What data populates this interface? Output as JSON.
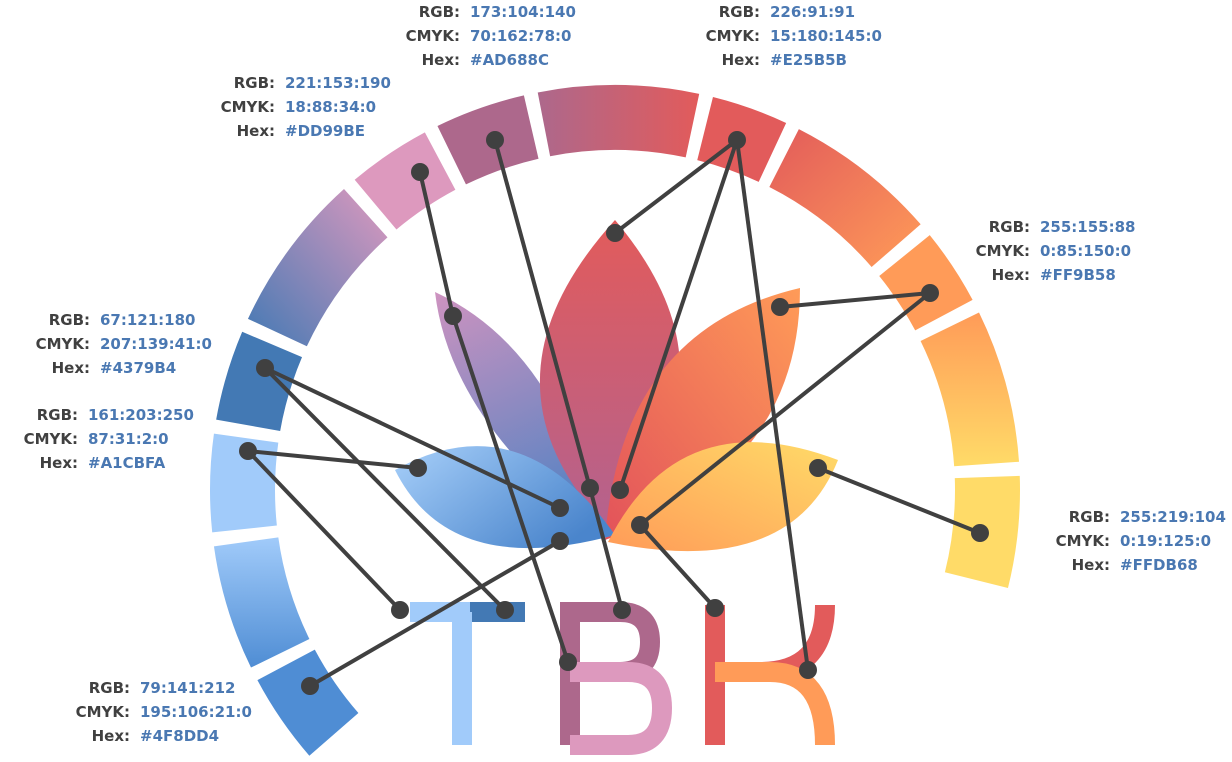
{
  "labels": {
    "rgb": "RGB:",
    "cmyk": "CMYK:",
    "hex": "Hex:"
  },
  "colors": [
    {
      "rgb": "79:141:212",
      "cmyk": "195:106:21:0",
      "hex": "#4F8DD4"
    },
    {
      "rgb": "161:203:250",
      "cmyk": "87:31:2:0",
      "hex": "#A1CBFA"
    },
    {
      "rgb": "67:121:180",
      "cmyk": "207:139:41:0",
      "hex": "#4379B4"
    },
    {
      "rgb": "221:153:190",
      "cmyk": "18:88:34:0",
      "hex": "#DD99BE"
    },
    {
      "rgb": "173:104:140",
      "cmyk": "70:162:78:0",
      "hex": "#AD688C"
    },
    {
      "rgb": "226:91:91",
      "cmyk": "15:180:145:0",
      "hex": "#E25B5B"
    },
    {
      "rgb": "255:155:88",
      "cmyk": "0:85:150:0",
      "hex": "#FF9B58"
    },
    {
      "rgb": "255:219:104",
      "cmyk": "0:19:125:0",
      "hex": "#FFDB68"
    }
  ]
}
